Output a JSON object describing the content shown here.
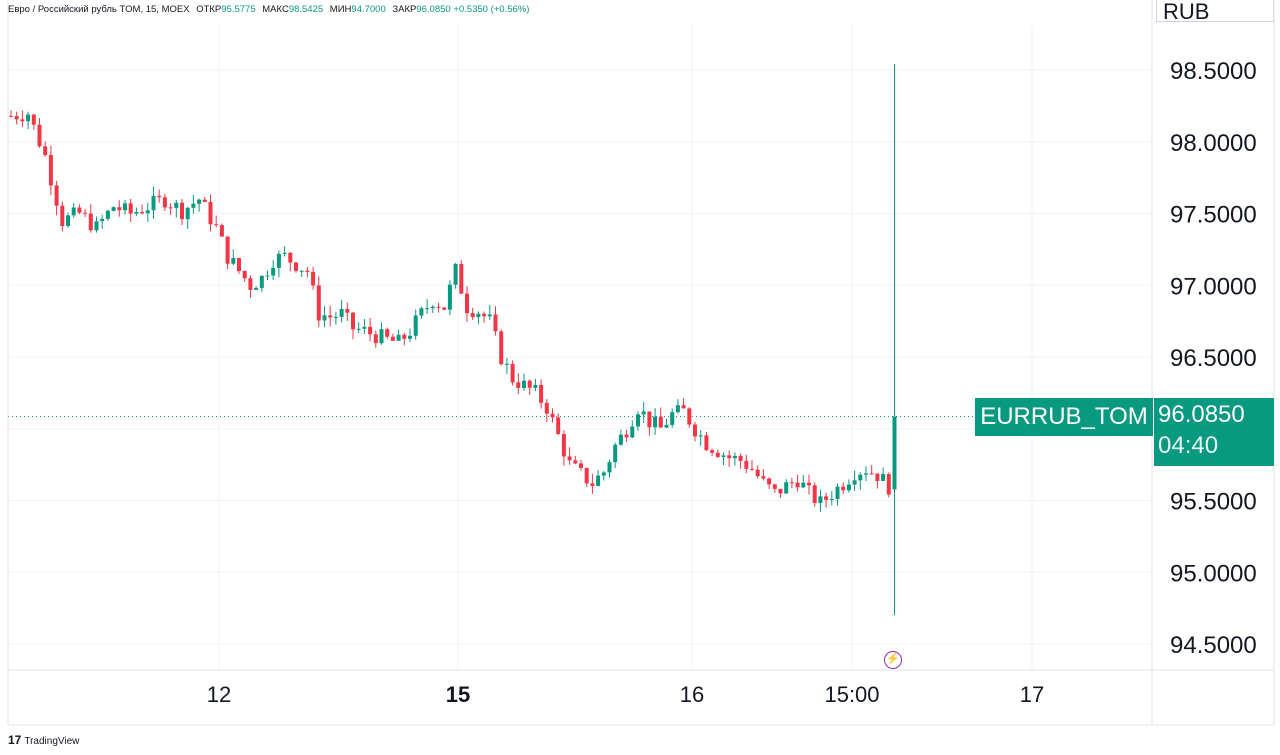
{
  "legend": {
    "symbol": "Евро / Российский рубль TOM, 15, MOEX",
    "open_label": "ОТКР",
    "open": "95.5775",
    "high_label": "МАКС",
    "high": "98.5425",
    "low_label": "МИН",
    "low": "94.7000",
    "close_label": "ЗАКР",
    "close": "96.0850",
    "change": "+0.5350 (+0.56%)"
  },
  "currency": "RUB",
  "symbol_tag": "EURRUB_TOM",
  "last_price": "96.0850",
  "countdown": "04:40",
  "branding": "TradingView",
  "colors": {
    "up": "#089981",
    "down": "#f23645",
    "grid": "#f0f3fa",
    "axis_text": "#131722"
  },
  "chart_data": {
    "type": "candlestick",
    "title": "",
    "xlabel": "",
    "ylabel": "",
    "ylim": [
      94.3,
      98.9
    ],
    "y_ticks": [
      "98.5000",
      "98.0000",
      "97.5000",
      "97.0000",
      "96.5000",
      "96.0000",
      "95.5000",
      "95.0000",
      "94.5000"
    ],
    "x_ticks": [
      {
        "label": "12",
        "bold": false
      },
      {
        "label": "15",
        "bold": true
      },
      {
        "label": "16",
        "bold": false
      },
      {
        "label": "15:00",
        "bold": false
      },
      {
        "label": "17",
        "bold": false
      }
    ],
    "current_price": 96.085,
    "close_path": [
      [
        0,
        98.18
      ],
      [
        3,
        98.2
      ],
      [
        6,
        97.9
      ],
      [
        9,
        97.45
      ],
      [
        12,
        97.5
      ],
      [
        15,
        97.4
      ],
      [
        18,
        97.55
      ],
      [
        21,
        97.5
      ],
      [
        24,
        97.55
      ],
      [
        27,
        97.6
      ],
      [
        30,
        97.52
      ],
      [
        33,
        97.6
      ],
      [
        36,
        97.4
      ],
      [
        38,
        97.2
      ],
      [
        40,
        97.1
      ],
      [
        42,
        97.0
      ],
      [
        44,
        97.05
      ],
      [
        46,
        97.18
      ],
      [
        48,
        97.2
      ],
      [
        50,
        97.15
      ],
      [
        52,
        97.1
      ],
      [
        54,
        96.8
      ],
      [
        56,
        96.78
      ],
      [
        58,
        96.8
      ],
      [
        60,
        96.7
      ],
      [
        62,
        96.68
      ],
      [
        64,
        96.65
      ],
      [
        66,
        96.62
      ],
      [
        68,
        96.6
      ],
      [
        70,
        96.68
      ],
      [
        72,
        96.8
      ],
      [
        74,
        96.9
      ],
      [
        76,
        96.85
      ],
      [
        78,
        97.1
      ],
      [
        80,
        96.85
      ],
      [
        82,
        96.82
      ],
      [
        84,
        96.75
      ],
      [
        86,
        96.5
      ],
      [
        88,
        96.35
      ],
      [
        90,
        96.3
      ],
      [
        92,
        96.25
      ],
      [
        94,
        96.15
      ],
      [
        96,
        95.95
      ],
      [
        98,
        95.75
      ],
      [
        100,
        95.68
      ],
      [
        102,
        95.62
      ],
      [
        104,
        95.7
      ],
      [
        106,
        95.88
      ],
      [
        108,
        96.0
      ],
      [
        110,
        96.15
      ],
      [
        112,
        96.05
      ],
      [
        114,
        96.0
      ],
      [
        116,
        96.1
      ],
      [
        118,
        96.12
      ],
      [
        120,
        96.0
      ],
      [
        122,
        95.9
      ],
      [
        124,
        95.85
      ],
      [
        126,
        95.8
      ],
      [
        128,
        95.78
      ],
      [
        130,
        95.72
      ],
      [
        132,
        95.62
      ],
      [
        134,
        95.55
      ],
      [
        136,
        95.6
      ],
      [
        138,
        95.65
      ],
      [
        140,
        95.55
      ],
      [
        142,
        95.48
      ],
      [
        144,
        95.55
      ],
      [
        146,
        95.62
      ],
      [
        148,
        95.7
      ],
      [
        150,
        95.72
      ],
      [
        152,
        95.68
      ],
      [
        154,
        95.6
      ],
      [
        155,
        96.085
      ]
    ]
  }
}
